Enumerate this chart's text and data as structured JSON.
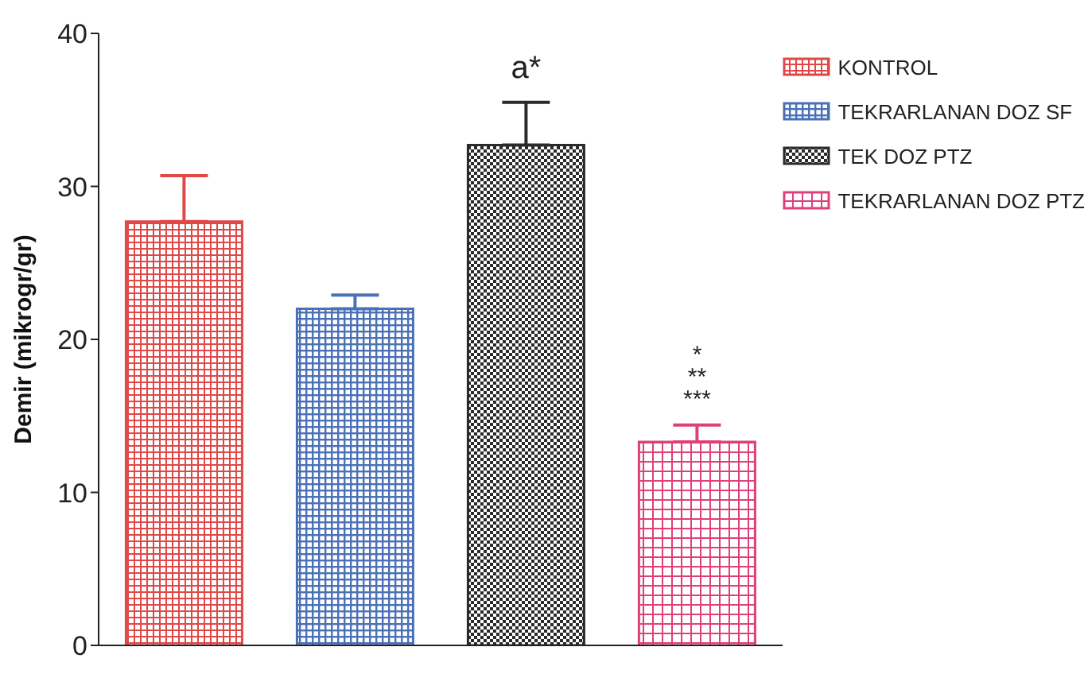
{
  "chart_data": {
    "type": "bar",
    "ylabel": "Demir (mikrogr/gr)",
    "categories": [
      null,
      null,
      null,
      null
    ],
    "series": [
      {
        "name": "KONTROL",
        "color": "#e04848",
        "values": [
          27.7,
          null,
          null,
          null
        ],
        "errors": [
          [
            27.7,
            30.7
          ],
          null,
          null,
          null
        ]
      },
      {
        "name": "TEKRARLANAN DOZ SF",
        "color": "#4a70b8",
        "values": [
          null,
          22.0,
          null,
          null
        ],
        "errors": [
          null,
          [
            22.0,
            22.9
          ],
          null,
          null
        ]
      },
      {
        "name": "TEK DOZ PTZ",
        "color": "#2a2a2a",
        "values": [
          null,
          null,
          32.7,
          null
        ],
        "errors": [
          null,
          null,
          [
            32.7,
            35.5
          ],
          null
        ]
      },
      {
        "name": "TEKRARLANAN DOZ PTZ",
        "color": "#e0407a",
        "values": [
          null,
          null,
          null,
          13.3
        ],
        "errors": [
          null,
          null,
          null,
          [
            13.3,
            14.4
          ]
        ]
      }
    ],
    "annotations": [
      "a*",
      "*",
      "**",
      "***"
    ],
    "ylim": [
      0,
      40
    ],
    "yticks": [
      0,
      10,
      20,
      30,
      40
    ],
    "grid": false,
    "legend": "top right"
  }
}
